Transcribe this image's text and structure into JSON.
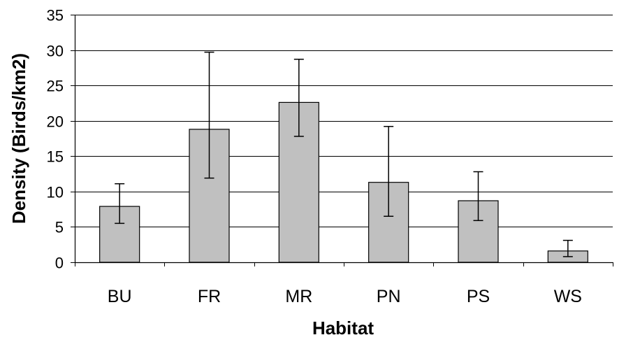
{
  "chart_data": {
    "type": "bar",
    "title": "",
    "xlabel": "Habitat",
    "ylabel": "Density (Birds/km2)",
    "categories": [
      "BU",
      "FR",
      "MR",
      "PN",
      "PS",
      "WS"
    ],
    "values": [
      7.9,
      18.8,
      22.6,
      11.3,
      8.7,
      1.6
    ],
    "error_low": [
      5.5,
      11.9,
      17.8,
      6.5,
      5.9,
      0.8
    ],
    "error_high": [
      11.1,
      29.7,
      28.7,
      19.2,
      12.8,
      3.1
    ],
    "ylim": [
      0,
      35
    ],
    "yticks": [
      0,
      5,
      10,
      15,
      20,
      25,
      30,
      35
    ],
    "ytick_labels": [
      "0",
      "5",
      "10",
      "15",
      "20",
      "25",
      "30",
      "35"
    ],
    "grid": "horizontal",
    "legend": "none",
    "colors": {
      "bar_fill": "#c0c0c0",
      "bar_stroke": "#000000",
      "grid": "#000000",
      "axis": "#000000",
      "error_bar": "#000000"
    }
  }
}
